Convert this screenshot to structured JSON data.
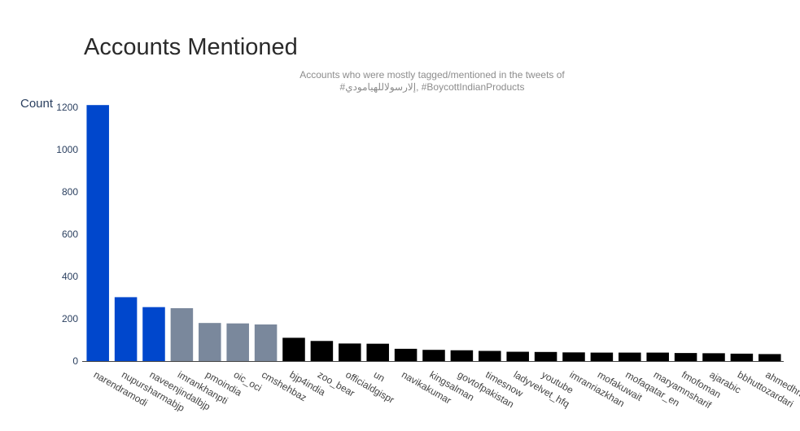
{
  "chart_data": {
    "type": "bar",
    "title": "Accounts Mentioned",
    "subtitle_lines": [
      "Accounts who were mostly tagged/mentioned in the tweets of",
      "#إلارسولاللهيامودي, #BoycottIndianProducts"
    ],
    "ylabel": "Count",
    "xlabel": "",
    "ylim": [
      0,
      1230
    ],
    "yticks": [
      0,
      200,
      400,
      600,
      800,
      1000,
      1200
    ],
    "grid": false,
    "categories": [
      "narendramodi",
      "nupursharmabjp",
      "naveenjindalbjp",
      "imrankhanpti",
      "pmoindia",
      "oic_oci",
      "cmshehbaz",
      "bjp4india",
      "zoo_bear",
      "officialdgispr",
      "un",
      "navikakumar",
      "kingsalman",
      "govtofpakistan",
      "timesnow",
      "ladyvelvet_hfq",
      "youtube",
      "imranriazkhan",
      "mofakuwait",
      "mofaqatar_en",
      "maryamnsharif",
      "fmofoman",
      "ajarabic",
      "bbhuttozardari",
      "ahmedhn"
    ],
    "values": [
      1210,
      302,
      255,
      250,
      180,
      178,
      173,
      110,
      95,
      83,
      82,
      58,
      53,
      51,
      48,
      44,
      43,
      41,
      40,
      40,
      40,
      38,
      37,
      35,
      33
    ],
    "colors": [
      "#0047cc",
      "#0047cc",
      "#0047cc",
      "#7a889c",
      "#7a889c",
      "#7a889c",
      "#7a889c",
      "#000000",
      "#000000",
      "#000000",
      "#000000",
      "#000000",
      "#000000",
      "#000000",
      "#000000",
      "#000000",
      "#000000",
      "#000000",
      "#000000",
      "#000000",
      "#000000",
      "#000000",
      "#000000",
      "#000000",
      "#000000"
    ]
  }
}
